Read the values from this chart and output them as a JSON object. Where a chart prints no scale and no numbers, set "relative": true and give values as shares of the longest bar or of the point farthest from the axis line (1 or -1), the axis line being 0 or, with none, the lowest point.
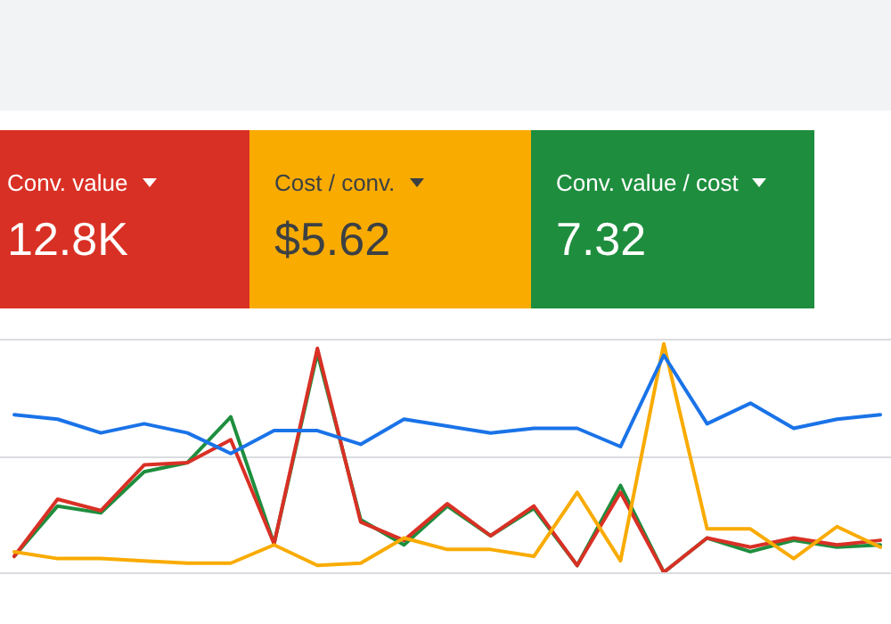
{
  "chart_data": [
    {
      "type": "other",
      "annotations": [
        "Conv. value",
        "12.8K",
        "Cost / conv.",
        "$5.62",
        "Conv. value / cost",
        "7.32"
      ],
      "colors": [
        "#d93025",
        "#f9ab00",
        "#1e8e3e"
      ]
    },
    {
      "type": "line",
      "relative": true,
      "legend": false,
      "marker": "none",
      "line_style": "solid",
      "ref_lines": [
        {
          "axis": "y",
          "value": 0.51,
          "color": "#dadce0"
        },
        {
          "axis": "y",
          "value": 1.02,
          "color": "#dadce0"
        }
      ],
      "categories": [
        null,
        null,
        null,
        null,
        null,
        null,
        null,
        null,
        null,
        null,
        null,
        null,
        null,
        null,
        null,
        null,
        null,
        null,
        null,
        null,
        null
      ],
      "series": [
        {
          "color": "#1a73e8",
          "values": [
            0.69,
            0.67,
            0.61,
            0.65,
            0.61,
            0.52,
            0.62,
            0.62,
            0.56,
            0.67,
            0.64,
            0.61,
            0.63,
            0.63,
            0.55,
            0.95,
            0.65,
            0.74,
            0.63,
            0.67,
            0.69
          ]
        },
        {
          "color": "#f9ab00",
          "values": [
            0.09,
            0.06,
            0.06,
            0.05,
            0.04,
            0.04,
            0.12,
            0.03,
            0.04,
            0.15,
            0.1,
            0.1,
            0.07,
            0.35,
            0.05,
            1.0,
            0.19,
            0.19,
            0.06,
            0.2,
            0.11
          ]
        },
        {
          "color": "#d93025",
          "values": [
            0.07,
            0.32,
            0.27,
            0.47,
            0.48,
            0.58,
            0.125,
            0.98,
            0.22,
            0.14,
            0.3,
            0.16,
            0.29,
            0.03,
            0.35,
            0.0,
            0.15,
            0.11,
            0.15,
            0.12,
            0.14
          ]
        },
        {
          "color": "#1e8e3e",
          "values": [
            0.07,
            0.29,
            0.26,
            0.44,
            0.48,
            0.68,
            0.125,
            0.96,
            0.23,
            0.12,
            0.29,
            0.16,
            0.28,
            0.03,
            0.38,
            0.0,
            0.15,
            0.09,
            0.14,
            0.11,
            0.12
          ]
        }
      ]
    }
  ]
}
